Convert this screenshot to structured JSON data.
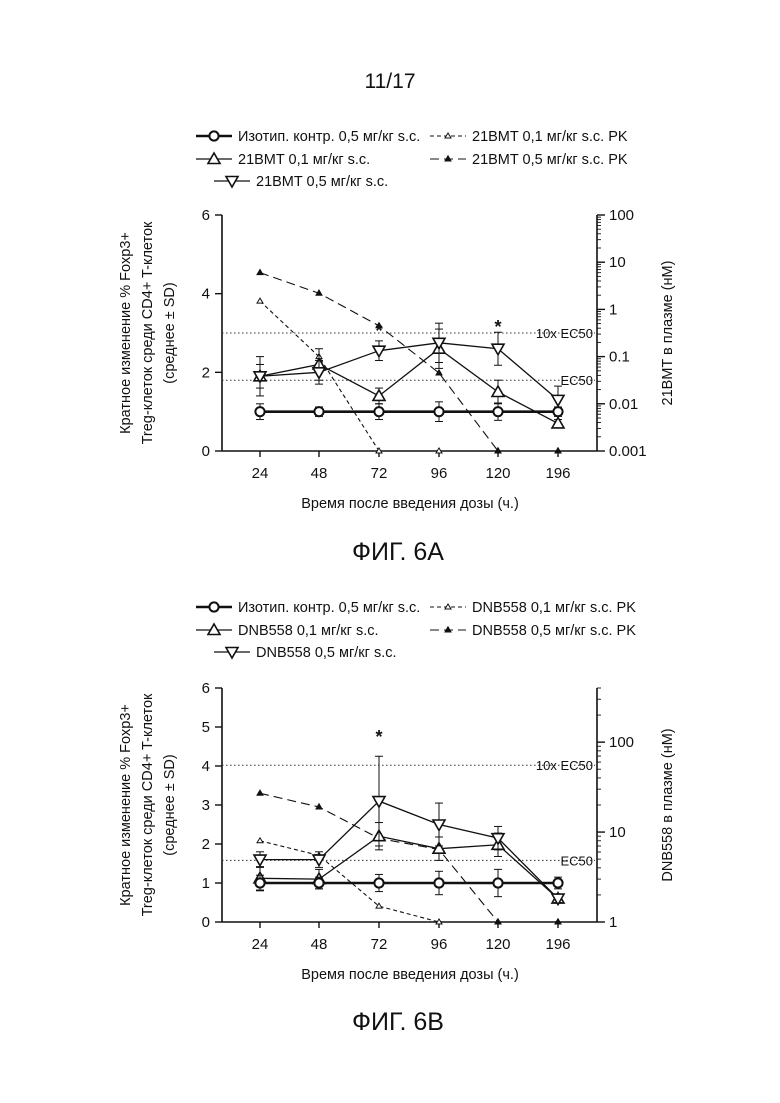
{
  "page_number": "11/17",
  "chart_data": [
    {
      "type": "line",
      "caption": "ФИГ. 6A",
      "xlabel": "Время после введения дозы (ч.)",
      "ylabel_left": [
        "Кратное изменение % Foxp3+",
        "Treg-клеток среди CD4+ T-клеток",
        "(среднее ± SD)"
      ],
      "ylabel_right": "21BMT в плазме (нМ)",
      "categories": [
        "24",
        "48",
        "72",
        "96",
        "120",
        "196"
      ],
      "ylim": [
        0,
        6
      ],
      "y_ticks": [
        "0",
        "2",
        "4",
        "6"
      ],
      "y_right_scale": "log",
      "y_right_ticks": [
        "0.001",
        "0.01",
        "0.1",
        "1",
        "10",
        "100"
      ],
      "y_right_range": [
        0.001,
        100
      ],
      "legend": [
        "Изотип. контр. 0,5 мг/кг s.c.",
        "21BMT 0,1 мг/кг s.c.",
        "21BMT 0,5 мг/кг s.c.",
        "21BMT 0,1 мг/кг s.c. PK",
        "21BMT 0,5 мг/кг s.c. PK"
      ],
      "reference_lines": [
        {
          "label": "10x  EC50",
          "y": 3.0
        },
        {
          "label": "EC50",
          "y": 1.8
        }
      ],
      "significance": [
        {
          "category": "72",
          "mark": "*",
          "y": 3.1
        },
        {
          "category": "120",
          "mark": "*",
          "y": 3.2
        }
      ],
      "series": [
        {
          "name": "Изотип. контр. 0,5 мг/кг s.c.",
          "marker": "circle",
          "line": "thick",
          "values": [
            1.0,
            1.0,
            1.0,
            1.0,
            1.0,
            1.0
          ],
          "errors": [
            0.2,
            0.12,
            0.2,
            0.25,
            0.22,
            0.12
          ]
        },
        {
          "name": "21BMT 0,1 мг/кг s.c.",
          "marker": "triangle-up",
          "line": "solid",
          "values": [
            1.9,
            2.2,
            1.4,
            2.6,
            1.5,
            0.7
          ],
          "errors": [
            0.5,
            0.4,
            0.2,
            0.5,
            0.3,
            0.1
          ]
        },
        {
          "name": "21BMT 0,5 мг/кг s.c.",
          "marker": "triangle-down",
          "line": "solid",
          "values": [
            1.9,
            2.0,
            2.55,
            2.75,
            2.6,
            1.3
          ],
          "errors": [
            0.3,
            0.3,
            0.25,
            0.5,
            0.42,
            0.35
          ]
        },
        {
          "name": "21BMT 0,1 мг/кг s.c. PK",
          "marker": "small-triangle",
          "line": "short-dash",
          "axis": "right",
          "values": [
            1.5,
            0.1,
            0.001,
            0.001,
            0.001,
            0.001
          ]
        },
        {
          "name": "21BMT 0,5 мг/кг s.c. PK",
          "marker": "small-filled-triangle",
          "line": "long-dash",
          "axis": "right",
          "values": [
            6.0,
            2.2,
            0.45,
            0.045,
            0.001,
            0.001
          ]
        }
      ]
    },
    {
      "type": "line",
      "caption": "ФИГ. 6B",
      "xlabel": "Время после введения дозы (ч.)",
      "ylabel_left": [
        "Кратное изменение % Foxp3+",
        "Treg-клеток среди CD4+ T-клеток",
        "(среднее ± SD)"
      ],
      "ylabel_right": "DNB558 в плазме (нМ)",
      "categories": [
        "24",
        "48",
        "72",
        "96",
        "120",
        "196"
      ],
      "ylim": [
        0,
        6
      ],
      "y_ticks": [
        "0",
        "1",
        "2",
        "3",
        "4",
        "5",
        "6"
      ],
      "y_right_scale": "log",
      "y_right_ticks": [
        "1",
        "10",
        "100"
      ],
      "y_right_range": [
        1,
        400
      ],
      "legend": [
        "Изотип. контр. 0,5 мг/кг s.c.",
        "DNB558 0,1 мг/кг s.c.",
        "DNB558 0,5 мг/кг s.c.",
        "DNB558 0,1 мг/кг s.c. PK",
        "DNB558 0,5 мг/кг s.c. PK"
      ],
      "reference_lines": [
        {
          "label": "10x  EC50",
          "y": 4.02
        },
        {
          "label": "EC50",
          "y": 1.58
        }
      ],
      "significance": [
        {
          "category": "72",
          "mark": "*",
          "y": 4.8
        }
      ],
      "series": [
        {
          "name": "Изотип. контр. 0,5 мг/кг s.c.",
          "marker": "circle",
          "line": "thick",
          "values": [
            1.0,
            1.0,
            1.0,
            1.0,
            1.0,
            1.0
          ],
          "errors": [
            0.2,
            0.15,
            0.22,
            0.3,
            0.35,
            0.15
          ]
        },
        {
          "name": "DNB558 0,1 мг/кг s.c.",
          "marker": "triangle-up",
          "line": "solid",
          "values": [
            1.12,
            1.1,
            2.2,
            1.88,
            1.98,
            0.6
          ],
          "errors": [
            0.3,
            0.25,
            0.35,
            0.3,
            0.3,
            0.1
          ]
        },
        {
          "name": "DNB558 0,5 мг/кг s.c.",
          "marker": "triangle-down",
          "line": "solid",
          "values": [
            1.6,
            1.6,
            3.1,
            2.5,
            2.15,
            0.6
          ],
          "errors": [
            0.2,
            0.2,
            1.15,
            0.55,
            0.3,
            0.1
          ]
        },
        {
          "name": "DNB558 0,1 мг/кг s.c. PK",
          "marker": "small-triangle",
          "line": "short-dash",
          "axis": "right",
          "values": [
            8.0,
            5.5,
            1.5,
            1.0,
            1.0,
            1.0
          ]
        },
        {
          "name": "DNB558 0,5 мг/кг s.c. PK",
          "marker": "small-filled-triangle",
          "line": "long-dash",
          "axis": "right",
          "values": [
            27,
            19,
            8.5,
            6.4,
            1.0,
            1.0
          ]
        }
      ]
    }
  ]
}
